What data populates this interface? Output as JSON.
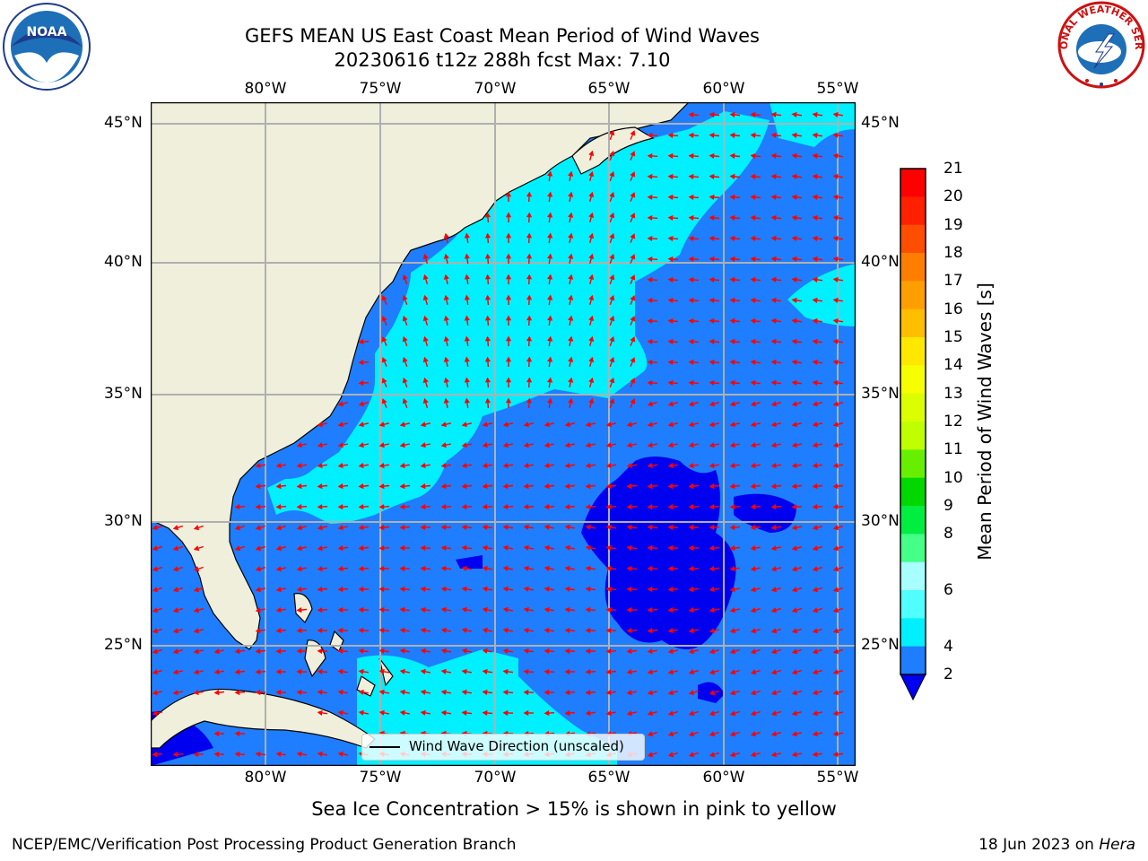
{
  "header": {
    "title_line1": "GEFS MEAN US East Coast Mean Period of Wind Waves",
    "title_line2": "20230616 t12z 288h fcst   Max: 7.10"
  },
  "map": {
    "lon_labels": [
      "80°W",
      "75°W",
      "70°W",
      "65°W",
      "60°W",
      "55°W"
    ],
    "lat_labels": [
      "45°N",
      "40°N",
      "35°N",
      "30°N",
      "25°N"
    ],
    "land_color": "#efefdc",
    "ocean_color_2_4": "#1e7eff",
    "ocean_color_4_6": "#00f0ff",
    "ocean_color_lt2": "#0000f0",
    "arrow_color": "#ff0000"
  },
  "legend": {
    "label": "Wind Wave Direction (unscaled)"
  },
  "colorbar": {
    "label": "Mean Period of Wind Waves [s]",
    "ticks": [
      "21",
      "20",
      "19",
      "18",
      "17",
      "16",
      "15",
      "14",
      "13",
      "12",
      "11",
      "10",
      "9",
      "8",
      "6",
      "4",
      "2"
    ],
    "colors": [
      "#ff0000",
      "#ff2000",
      "#ff4e00",
      "#ff7e00",
      "#ff9e00",
      "#ffbe00",
      "#ffe800",
      "#f6ff00",
      "#dcff00",
      "#c0ff00",
      "#66f000",
      "#00d800",
      "#00ee40",
      "#44ff88",
      "#a8ffff",
      "#50ffff",
      "#00f0ff",
      "#1e7eff"
    ],
    "under_color": "#0000f0"
  },
  "caption": "Sea Ice Concentration > 15% is shown in pink to yellow",
  "footer": {
    "left": "NCEP/EMC/Verification Post Processing Product Generation Branch",
    "right_date": "18 Jun 2023 on ",
    "right_host": "Hera"
  },
  "logos": {
    "noaa": "NOAA",
    "nws": "NATIONAL WEATHER SERVICE"
  }
}
